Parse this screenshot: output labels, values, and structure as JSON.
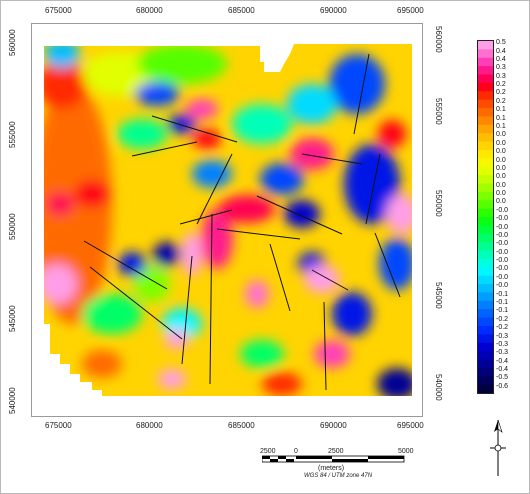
{
  "map": {
    "x_ticks_top": [
      "675000",
      "680000",
      "685000",
      "690000",
      "695000"
    ],
    "x_ticks_bottom": [
      "675000",
      "680000",
      "685000",
      "690000",
      "695000"
    ],
    "y_ticks_left": [
      "560000",
      "555000",
      "550000",
      "545000",
      "540000"
    ],
    "y_ticks_right": [
      "560000",
      "555000",
      "550000",
      "545000",
      "540000"
    ]
  },
  "legend": {
    "labels": [
      "0.5",
      "0.4",
      "0.4",
      "0.3",
      "0.3",
      "0.2",
      "0.2",
      "0.2",
      "0.1",
      "0.1",
      "0.1",
      "0.0",
      "0.0",
      "0.0",
      "0.0",
      "0.0",
      "0.0",
      "0.0",
      "0.0",
      "0.0",
      "-0.0",
      "-0.0",
      "-0.0",
      "-0.0",
      "-0.0",
      "-0.0",
      "-0.0",
      "-0.0",
      "-0.0",
      "-0.0",
      "-0.1",
      "-0.1",
      "-0.1",
      "-0.2",
      "-0.2",
      "-0.3",
      "-0.3",
      "-0.3",
      "-0.4",
      "-0.4",
      "-0.5",
      "-0.6"
    ],
    "colors": [
      "#ff9ee8",
      "#ff6fd0",
      "#ff3fb8",
      "#ff1a8c",
      "#ff0055",
      "#ff0018",
      "#ff2a00",
      "#ff4d00",
      "#ff6a00",
      "#ff8800",
      "#ffa300",
      "#ffbd00",
      "#ffd400",
      "#ffe800",
      "#f7f700",
      "#e1ff00",
      "#c3ff00",
      "#a0ff00",
      "#7cff00",
      "#55ff00",
      "#2dff00",
      "#0bff14",
      "#00ff3c",
      "#00ff66",
      "#00ff8f",
      "#00ffb8",
      "#00ffde",
      "#00f7ff",
      "#00dbff",
      "#00bdff",
      "#009eff",
      "#0080ff",
      "#0062ff",
      "#0047ff",
      "#002dff",
      "#0016e6",
      "#0000d0",
      "#0000b4",
      "#000096",
      "#00007a",
      "#00005c",
      "#000040"
    ]
  },
  "scale": {
    "ticks": [
      "2500",
      "0",
      "2500",
      "5000"
    ],
    "unit": "(meters)",
    "projection": "WGS 84 / UTM zone 47N"
  }
}
